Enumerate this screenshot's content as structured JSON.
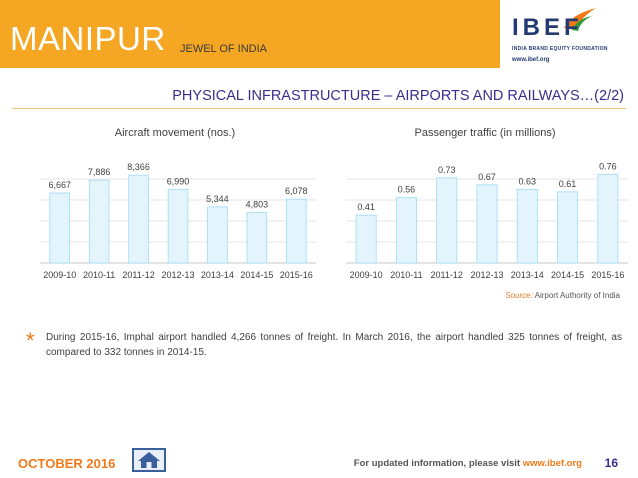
{
  "header": {
    "title": "MANIPUR",
    "subtitle": "JEWEL OF INDIA"
  },
  "logo": {
    "name": "IBEF",
    "tagline": "INDIA BRAND EQUITY FOUNDATION",
    "url": "www.ibef.org"
  },
  "page_title": "PHYSICAL INFRASTRUCTURE – AIRPORTS AND RAILWAYS…(2/2)",
  "chart_data": [
    {
      "type": "bar",
      "title": "Aircraft movement (nos.)",
      "categories": [
        "2009-10",
        "2010-11",
        "2011-12",
        "2012-13",
        "2013-14",
        "2014-15",
        "2015-16"
      ],
      "values": [
        6667,
        7886,
        8366,
        6990,
        5344,
        4803,
        6078
      ],
      "labels": [
        "6,667",
        "7,886",
        "8,366",
        "6,990",
        "5,344",
        "4,803",
        "6,078"
      ],
      "ylim": [
        0,
        10000
      ],
      "grid": true,
      "bar_color": "#e3f4fc",
      "bar_edge": "#9ddcf5"
    },
    {
      "type": "bar",
      "title": "Passenger traffic (in millions)",
      "categories": [
        "2009-10",
        "2010-11",
        "2011-12",
        "2012-13",
        "2013-14",
        "2014-15",
        "2015-16"
      ],
      "values": [
        0.41,
        0.56,
        0.73,
        0.67,
        0.63,
        0.61,
        0.76
      ],
      "labels": [
        "0.41",
        "0.56",
        "0.73",
        "0.67",
        "0.63",
        "0.61",
        "0.76"
      ],
      "ylim": [
        0,
        0.9
      ],
      "grid": true,
      "bar_color": "#e3f4fc",
      "bar_edge": "#9ddcf5"
    }
  ],
  "source": {
    "label": "Source:",
    "text": "Airport Authority of India"
  },
  "note": "During 2015-16, Imphal airport handled 4,266 tonnes of freight. In March 2016, the airport handled 325 tonnes of freight, as compared to 332 tonnes in 2014-15.",
  "footer": {
    "date": "OCTOBER 2016",
    "text": "For updated information, please visit ",
    "url": "www.ibef.org",
    "page": "16"
  },
  "colors": {
    "header": "#f5a623",
    "title": "#3a2e8c",
    "accent": "#f07a1a"
  }
}
